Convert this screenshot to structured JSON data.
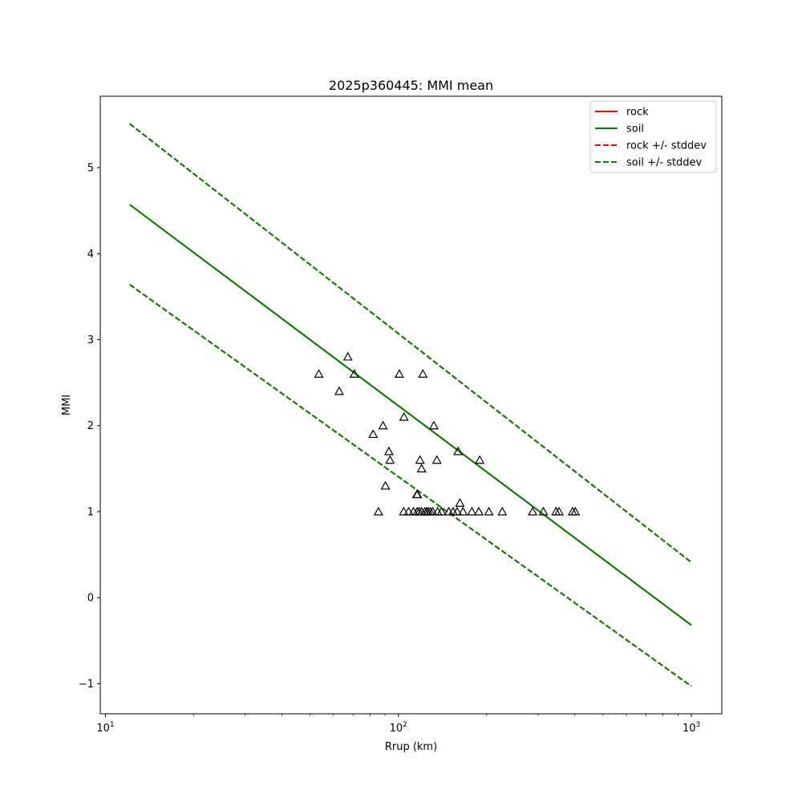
{
  "chart_data": {
    "type": "line",
    "title": "2025p360445: MMI mean",
    "xlabel": "Rrup (km)",
    "ylabel": "MMI",
    "xscale": "log",
    "xlim": [
      9.6,
      1270
    ],
    "ylim": [
      -1.35,
      5.83
    ],
    "xticks": [
      {
        "value": 10,
        "base": "10",
        "exp": "1"
      },
      {
        "value": 100,
        "base": "10",
        "exp": "2"
      },
      {
        "value": 1000,
        "base": "10",
        "exp": "3"
      }
    ],
    "yticks": [
      {
        "value": -1,
        "label": "−1"
      },
      {
        "value": 0,
        "label": "0"
      },
      {
        "value": 1,
        "label": "1"
      },
      {
        "value": 2,
        "label": "2"
      },
      {
        "value": 3,
        "label": "3"
      },
      {
        "value": 4,
        "label": "4"
      },
      {
        "value": 5,
        "label": "5"
      }
    ],
    "grid": false,
    "legend_position": "top-right",
    "series": [
      {
        "name": "rock",
        "color": "#ff0000",
        "dash": "solid",
        "x": [
          12.1,
          1000
        ],
        "y": [
          4.57,
          -0.32
        ]
      },
      {
        "name": "soil",
        "color": "#008000",
        "dash": "solid",
        "x": [
          12.1,
          1000
        ],
        "y": [
          4.57,
          -0.32
        ]
      },
      {
        "name": "rock +/- stddev",
        "color": "#ff0000",
        "dash": "dashed",
        "x": [
          12.1,
          1000
        ],
        "y": [
          5.51,
          0.41
        ],
        "x2": [
          12.1,
          1000
        ],
        "y2": [
          3.64,
          -1.03
        ]
      },
      {
        "name": "soil +/- stddev",
        "color": "#008000",
        "dash": "dashed",
        "x": [
          12.1,
          1000
        ],
        "y": [
          5.51,
          0.41
        ],
        "x2": [
          12.1,
          1000
        ],
        "y2": [
          3.64,
          -1.03
        ]
      }
    ],
    "observations": {
      "marker": "triangle",
      "color": "#000000",
      "points": [
        [
          53.5,
          2.6
        ],
        [
          62.8,
          2.4
        ],
        [
          67.2,
          2.8
        ],
        [
          70.7,
          2.6
        ],
        [
          82.0,
          1.9
        ],
        [
          88.6,
          2.0
        ],
        [
          90.3,
          1.3
        ],
        [
          92.8,
          1.7
        ],
        [
          93.6,
          1.6
        ],
        [
          85.5,
          1.0
        ],
        [
          100.7,
          2.6
        ],
        [
          104.4,
          2.1
        ],
        [
          121.2,
          2.6
        ],
        [
          132.1,
          2.0
        ],
        [
          135.3,
          1.6
        ],
        [
          159.8,
          1.7
        ],
        [
          189.4,
          1.6
        ],
        [
          118.5,
          1.6
        ],
        [
          120.0,
          1.5
        ],
        [
          115.6,
          1.2
        ],
        [
          116.0,
          1.2
        ],
        [
          162.1,
          1.1
        ],
        [
          104.2,
          1.0
        ],
        [
          108.4,
          1.0
        ],
        [
          112.6,
          1.0
        ],
        [
          115.9,
          1.0
        ],
        [
          117.7,
          1.0
        ],
        [
          119.9,
          1.0
        ],
        [
          123.0,
          1.0
        ],
        [
          124.8,
          1.0
        ],
        [
          126.4,
          1.0
        ],
        [
          128.5,
          1.0
        ],
        [
          130.8,
          1.0
        ],
        [
          136.1,
          1.0
        ],
        [
          140.4,
          1.0
        ],
        [
          148.6,
          1.0
        ],
        [
          153.7,
          1.0
        ],
        [
          158.6,
          1.0
        ],
        [
          166.1,
          1.0
        ],
        [
          178.0,
          1.0
        ],
        [
          188.1,
          1.0
        ],
        [
          203.6,
          1.0
        ],
        [
          226.2,
          1.0
        ],
        [
          287.1,
          1.0
        ],
        [
          312.4,
          1.0
        ],
        [
          345.1,
          1.0
        ],
        [
          353.3,
          1.0
        ],
        [
          393.0,
          1.0
        ],
        [
          401.4,
          1.0
        ]
      ]
    }
  }
}
